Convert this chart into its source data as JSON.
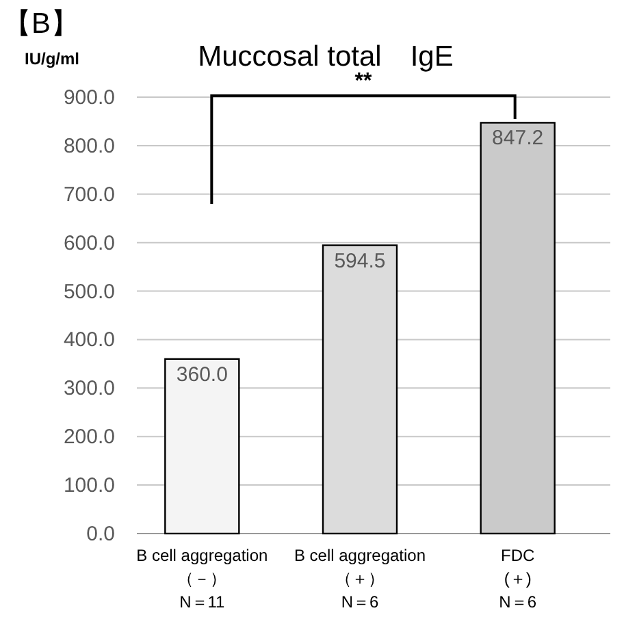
{
  "chart_data": {
    "type": "bar",
    "title": "Muccosal total　IgE",
    "ylabel": "IU/g/ml",
    "annotations": [
      "【B】",
      "**"
    ],
    "categories": [
      "B cell aggregation\n（－）\nN＝11",
      "B cell aggregation\n（＋）\nN＝6",
      "FDC\n(＋)\nN＝6"
    ],
    "values": [
      360.0,
      594.5,
      847.2
    ],
    "value_labels": [
      "360.0",
      "594.5",
      "847.2"
    ],
    "colors": [
      "#f4f4f4",
      "#dcdcdc",
      "#cacaca"
    ],
    "ylim": [
      0,
      900
    ],
    "yticks": [
      {
        "value": 0,
        "label": "0.0"
      },
      {
        "value": 100,
        "label": "100.0"
      },
      {
        "value": 200,
        "label": "200.0"
      },
      {
        "value": 300,
        "label": "300.0"
      },
      {
        "value": 400,
        "label": "400.0"
      },
      {
        "value": 500,
        "label": "500.0"
      },
      {
        "value": 600,
        "label": "600.0"
      },
      {
        "value": 700,
        "label": "700.0"
      },
      {
        "value": 800,
        "label": "800.0"
      },
      {
        "value": 900,
        "label": "900.0"
      }
    ],
    "grid": "y"
  }
}
